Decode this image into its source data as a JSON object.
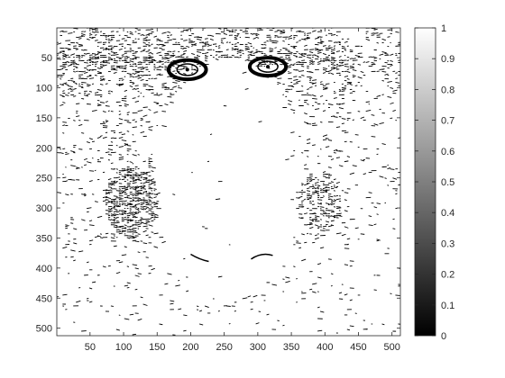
{
  "chart_data": {
    "type": "heatmap",
    "title": "",
    "xlabel": "",
    "ylabel": "",
    "colormap": "gray",
    "colormap_colors": [
      "#000000",
      "#ffffff"
    ],
    "xlim": [
      0.5,
      512.5
    ],
    "ylim": [
      0.5,
      512.5
    ],
    "y_axis_direction": "reversed",
    "color_limits": [
      0,
      1
    ],
    "x_ticks": [
      50,
      100,
      150,
      200,
      250,
      300,
      350,
      400,
      450,
      500
    ],
    "y_ticks": [
      50,
      100,
      150,
      200,
      250,
      300,
      350,
      400,
      450,
      500
    ],
    "colorbar_ticks": [
      0,
      0.1,
      0.2,
      0.3,
      0.4,
      0.5,
      0.6,
      0.7,
      0.8,
      0.9,
      1
    ],
    "x_tick_labels": [
      "50",
      "100",
      "150",
      "200",
      "250",
      "300",
      "350",
      "400",
      "450",
      "500"
    ],
    "y_tick_labels": [
      "50",
      "100",
      "150",
      "200",
      "250",
      "300",
      "350",
      "400",
      "450",
      "500"
    ],
    "colorbar_tick_labels": [
      "0",
      "0.1",
      "0.2",
      "0.3",
      "0.4",
      "0.5",
      "0.6",
      "0.7",
      "0.8",
      "0.9",
      "1"
    ],
    "image_description": "binary edge map of a mandrill face (values 0 or 1)",
    "features": [
      {
        "name": "left-eye",
        "x": 195,
        "y": 70,
        "rx": 28,
        "ry": 16
      },
      {
        "name": "right-eye",
        "x": 315,
        "y": 65,
        "rx": 27,
        "ry": 15
      }
    ]
  }
}
